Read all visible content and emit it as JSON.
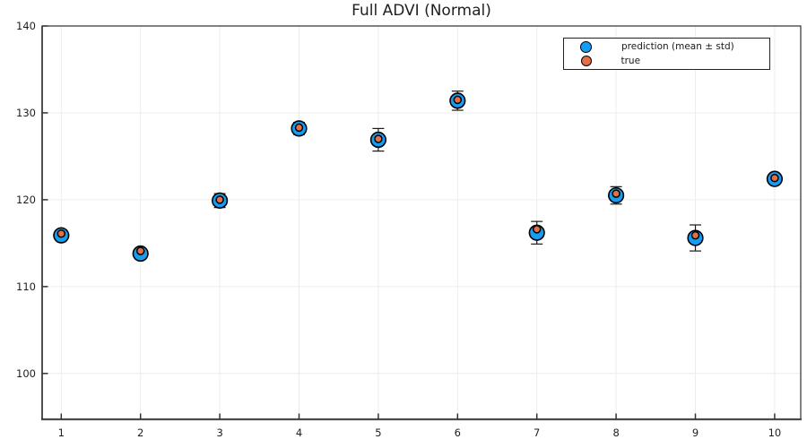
{
  "title": "Full ADVI (Normal)",
  "colors": {
    "prediction_fill": "#169df2",
    "true_fill": "#e26f46",
    "marker_stroke": "#000000",
    "errorbar": "#1a1a1a",
    "grid": "#ececec",
    "frame": "#2e2e2e",
    "bottom_spine": "#4a4a4a",
    "tick": "#333333",
    "text": "#1f1f1f",
    "background": "#ffffff"
  },
  "legend": {
    "items": [
      {
        "label": "prediction (mean ± std)",
        "series": "prediction"
      },
      {
        "label": "true",
        "series": "true"
      }
    ],
    "position": "top-right"
  },
  "chart_data": {
    "type": "scatter",
    "title": "Full ADVI (Normal)",
    "xlabel": "",
    "ylabel": "",
    "x": [
      1,
      2,
      3,
      4,
      5,
      6,
      7,
      8,
      9,
      10
    ],
    "series": [
      {
        "name": "prediction (mean ± std)",
        "values": [
          115.9,
          113.8,
          119.9,
          128.2,
          126.9,
          131.4,
          116.2,
          120.5,
          115.6,
          122.4
        ],
        "std": [
          0.6,
          0.5,
          0.8,
          0.7,
          1.3,
          1.1,
          1.3,
          1.0,
          1.5,
          0.6
        ],
        "color": "#169df2"
      },
      {
        "name": "true",
        "values": [
          116.1,
          114.1,
          120.0,
          128.3,
          127.0,
          131.5,
          116.6,
          120.7,
          115.9,
          122.5
        ],
        "color": "#e26f46"
      }
    ],
    "x_ticks": [
      1,
      2,
      3,
      4,
      5,
      6,
      7,
      8,
      9,
      10
    ],
    "y_ticks": [
      100,
      110,
      120,
      130,
      140
    ],
    "xlim": [
      0.759,
      10.329
    ],
    "ylim": [
      94.72,
      140
    ],
    "grid": true,
    "legend_position": "top-right"
  }
}
